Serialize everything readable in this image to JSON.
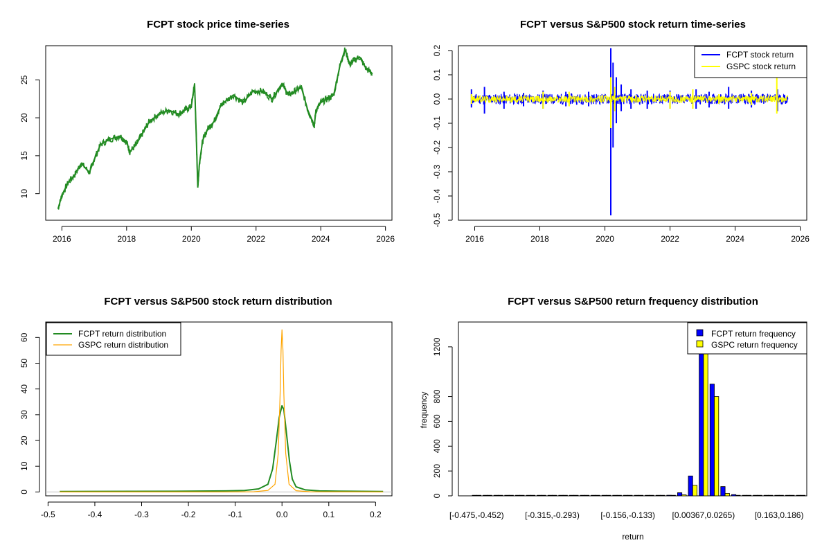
{
  "chart_data": [
    {
      "type": "line",
      "title": "FCPT stock price time-series",
      "xlabel": "",
      "ylabel": "",
      "xlim": [
        2015.5,
        2026.2
      ],
      "ylim": [
        6.5,
        29.5
      ],
      "x_ticks": [
        "2016",
        "2018",
        "2020",
        "2022",
        "2024",
        "2026"
      ],
      "y_ticks": [
        "10",
        "15",
        "20",
        "25"
      ],
      "series": [
        {
          "color": "#228b22",
          "x": [
            2015.88,
            2016.0,
            2016.2,
            2016.4,
            2016.6,
            2016.85,
            2017.0,
            2017.2,
            2017.5,
            2017.8,
            2018.0,
            2018.1,
            2018.3,
            2018.5,
            2018.7,
            2019.0,
            2019.3,
            2019.6,
            2019.8,
            2020.0,
            2020.1,
            2020.15,
            2020.2,
            2020.25,
            2020.35,
            2020.5,
            2020.7,
            2020.9,
            2021.0,
            2021.3,
            2021.6,
            2021.9,
            2022.2,
            2022.5,
            2022.8,
            2023.0,
            2023.2,
            2023.4,
            2023.6,
            2023.8,
            2023.85,
            2024.0,
            2024.2,
            2024.4,
            2024.6,
            2024.75,
            2024.9,
            2025.0,
            2025.2,
            2025.4,
            2025.6
          ],
          "values": [
            8.0,
            9.8,
            11.5,
            12.5,
            14.0,
            12.8,
            14.5,
            16.5,
            17.2,
            17.6,
            16.8,
            15.5,
            16.5,
            18.0,
            19.5,
            20.5,
            21.0,
            20.5,
            21.0,
            21.5,
            24.5,
            18.0,
            10.8,
            14.0,
            17.0,
            18.5,
            19.5,
            21.5,
            22.0,
            23.0,
            22.0,
            23.5,
            23.5,
            22.5,
            24.5,
            23.0,
            23.5,
            24.0,
            21.0,
            19.0,
            21.0,
            22.0,
            22.5,
            23.0,
            27.0,
            29.0,
            27.0,
            27.5,
            28.0,
            26.5,
            25.8
          ]
        }
      ]
    },
    {
      "type": "line",
      "title": "FCPT versus S&P500 stock return time-series",
      "xlabel": "",
      "ylabel": "",
      "xlim": [
        2015.5,
        2026.2
      ],
      "ylim": [
        -0.5,
        0.22
      ],
      "x_ticks": [
        "2016",
        "2018",
        "2020",
        "2022",
        "2024",
        "2026"
      ],
      "y_ticks": [
        "-0.5",
        "-0.4",
        "-0.3",
        "-0.2",
        "-0.1",
        "0.0",
        "0.1",
        "0.2"
      ],
      "legend_position": "top-right",
      "series": [
        {
          "name": "FCPT stock return",
          "color": "#0000ff",
          "spikes": [
            [
              2015.9,
              0.04,
              -0.035
            ],
            [
              2016.3,
              0.05,
              -0.06
            ],
            [
              2016.9,
              0.03,
              -0.04
            ],
            [
              2017.5,
              0.025,
              -0.03
            ],
            [
              2018.1,
              0.035,
              -0.04
            ],
            [
              2018.8,
              0.03,
              -0.03
            ],
            [
              2019.5,
              0.03,
              -0.03
            ],
            [
              2020.18,
              0.21,
              -0.48
            ],
            [
              2020.25,
              0.15,
              -0.2
            ],
            [
              2020.35,
              0.09,
              -0.1
            ],
            [
              2020.5,
              0.06,
              -0.05
            ],
            [
              2020.8,
              0.04,
              -0.04
            ],
            [
              2021.3,
              0.035,
              -0.04
            ],
            [
              2022.0,
              0.035,
              -0.04
            ],
            [
              2022.8,
              0.04,
              -0.04
            ],
            [
              2023.2,
              0.03,
              -0.035
            ],
            [
              2023.8,
              0.05,
              -0.04
            ],
            [
              2024.5,
              0.035,
              -0.035
            ],
            [
              2025.3,
              0.04,
              -0.05
            ]
          ]
        },
        {
          "name": "GSPC stock return",
          "color": "#ffff00",
          "spikes": [
            [
              2015.9,
              0.02,
              -0.02
            ],
            [
              2017.0,
              0.01,
              -0.01
            ],
            [
              2018.1,
              0.03,
              -0.04
            ],
            [
              2018.9,
              0.03,
              -0.03
            ],
            [
              2020.18,
              0.09,
              -0.12
            ],
            [
              2020.3,
              0.05,
              -0.05
            ],
            [
              2022.0,
              0.03,
              -0.04
            ],
            [
              2022.7,
              0.04,
              -0.04
            ],
            [
              2023.5,
              0.02,
              -0.02
            ],
            [
              2024.5,
              0.025,
              -0.025
            ],
            [
              2025.28,
              0.09,
              -0.06
            ]
          ]
        }
      ]
    },
    {
      "type": "line",
      "title": "FCPT versus S&P500 stock return distribution",
      "xlabel": "",
      "ylabel": "",
      "xlim": [
        -0.505,
        0.235
      ],
      "ylim": [
        -1.5,
        66
      ],
      "x_ticks": [
        "-0.5",
        "-0.4",
        "-0.3",
        "-0.2",
        "-0.1",
        "0.0",
        "0.1",
        "0.2"
      ],
      "y_ticks": [
        "0",
        "10",
        "20",
        "30",
        "40",
        "50",
        "60"
      ],
      "legend_position": "top-left",
      "series": [
        {
          "name": "FCPT return distribution",
          "color": "#228b22",
          "x": [
            -0.475,
            -0.2,
            -0.12,
            -0.08,
            -0.05,
            -0.03,
            -0.02,
            -0.012,
            -0.006,
            0.0,
            0.004,
            0.01,
            0.016,
            0.022,
            0.03,
            0.05,
            0.08,
            0.12,
            0.216
          ],
          "values": [
            0.2,
            0.3,
            0.4,
            0.6,
            1.2,
            3.0,
            9.0,
            20.0,
            29.0,
            33.5,
            32.0,
            22.0,
            12.0,
            5.0,
            2.0,
            0.8,
            0.4,
            0.3,
            0.2
          ]
        },
        {
          "name": "GSPC return distribution",
          "color": "#ffa500",
          "x": [
            -0.475,
            -0.12,
            -0.06,
            -0.03,
            -0.015,
            -0.008,
            -0.004,
            -0.002,
            0.0,
            0.002,
            0.004,
            0.008,
            0.015,
            0.03,
            0.06,
            0.216
          ],
          "values": [
            0.0,
            0.0,
            0.1,
            0.6,
            3.0,
            15.0,
            38.0,
            55.0,
            63.0,
            55.0,
            38.0,
            15.0,
            3.0,
            0.5,
            0.1,
            0.0
          ]
        }
      ]
    },
    {
      "type": "bar",
      "title": "FCPT versus S&P500 return frequency distribution",
      "xlabel": "return",
      "ylabel": "frequency",
      "ylim": [
        0,
        1400
      ],
      "y_ticks": [
        "0",
        "200",
        "400",
        "600",
        "800",
        "1200"
      ],
      "tick_labels": [
        "[-0.475,-0.452)",
        "[-0.315,-0.293)",
        "[-0.156,-0.133)",
        "[0.00367,0.0265)",
        "[0.163,0.186)"
      ],
      "tick_label_bins": [
        0,
        7,
        14,
        21,
        28
      ],
      "legend_position": "top-right",
      "bin_count": 31,
      "series": [
        {
          "name": "FCPT return frequency",
          "color": "#0000ff",
          "values": [
            1,
            0,
            0,
            0,
            0,
            0,
            0,
            0,
            0,
            0,
            0,
            0,
            0,
            0,
            0,
            0,
            1,
            2,
            5,
            25,
            160,
            1300,
            900,
            75,
            10,
            4,
            3,
            2,
            1,
            1,
            1
          ]
        },
        {
          "name": "GSPC return frequency",
          "color": "#ffff00",
          "values": [
            0,
            0,
            0,
            0,
            0,
            0,
            0,
            0,
            0,
            0,
            0,
            0,
            0,
            0,
            0,
            0,
            0,
            0,
            2,
            8,
            85,
            1300,
            800,
            20,
            2,
            0,
            0,
            0,
            0,
            0,
            0
          ]
        }
      ]
    }
  ]
}
